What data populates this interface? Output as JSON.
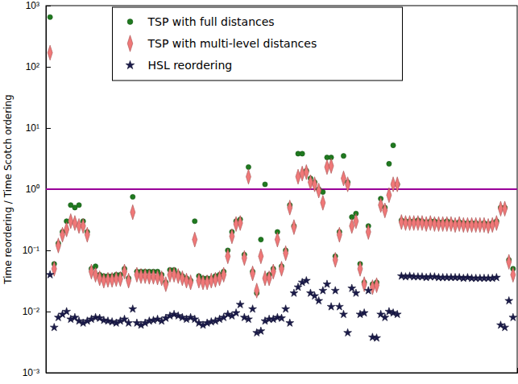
{
  "chart_data": {
    "type": "scatter",
    "y_label": "Time reordering / Time Scotch ordering",
    "log": "y",
    "legend": "upper center",
    "tick_labels": "y",
    "x": [
      1,
      2,
      3,
      4,
      5,
      6,
      7,
      8,
      9,
      10,
      11,
      12,
      13,
      14,
      15,
      16,
      17,
      18,
      19,
      20,
      21,
      22,
      23,
      24,
      25,
      26,
      27,
      28,
      29,
      30,
      31,
      32,
      33,
      34,
      35,
      36,
      37,
      38,
      39,
      40,
      41,
      42,
      43,
      44,
      45,
      46,
      47,
      48,
      49,
      50,
      51,
      52,
      53,
      54,
      55,
      56,
      57,
      58,
      59,
      60,
      61,
      62,
      63,
      64,
      65,
      66,
      67,
      68,
      69,
      70,
      71,
      72,
      73,
      74,
      75,
      76,
      77,
      78,
      79,
      80,
      81,
      82,
      83,
      84,
      85,
      86,
      87,
      88,
      89,
      90,
      91,
      92,
      93,
      94,
      95,
      96,
      97,
      98,
      99,
      100,
      101,
      102,
      103,
      104,
      105,
      106,
      107,
      108,
      109,
      110,
      111,
      112,
      113
    ],
    "xlim": [
      0,
      114
    ],
    "xticks": [],
    "ylim": [
      0.001,
      1000
    ],
    "yticks": [
      {
        "value": 0.001,
        "label": "10⁻³"
      },
      {
        "value": 0.01,
        "label": "10⁻²"
      },
      {
        "value": 0.1,
        "label": "10⁻¹"
      },
      {
        "value": 1,
        "label": "10⁰"
      },
      {
        "value": 10,
        "label": "10¹"
      },
      {
        "value": 100,
        "label": "10²"
      },
      {
        "value": 1000,
        "label": "10³"
      }
    ],
    "hline": {
      "value": 1,
      "color": "#990099"
    },
    "series": [
      {
        "name": "TSP with full distances",
        "color": "#1f7a1f",
        "marker": "circle",
        "values": [
          650,
          0.06,
          0.13,
          0.2,
          0.3,
          0.55,
          0.5,
          0.55,
          0.3,
          0.2,
          0.05,
          0.055,
          0.04,
          0.038,
          0.038,
          0.038,
          0.04,
          0.04,
          0.05,
          0.035,
          0.75,
          0.045,
          0.045,
          0.045,
          0.045,
          0.045,
          0.045,
          0.04,
          0.03,
          0.048,
          0.048,
          0.042,
          0.038,
          0.035,
          0.032,
          0.3,
          0.038,
          0.035,
          0.035,
          0.035,
          0.038,
          0.04,
          0.045,
          0.1,
          0.2,
          0.3,
          0.32,
          0.085,
          2.3,
          0.045,
          0.02,
          0.15,
          1.2,
          0.04,
          0.05,
          0.2,
          0.055,
          0.1,
          0.55,
          0.25,
          3.8,
          3.8,
          2.0,
          1.5,
          1.3,
          1.0,
          0.9,
          3.3,
          3.3,
          0.08,
          0.2,
          3.5,
          1.3,
          0.35,
          0.4,
          0.06,
          0.03,
          0.25,
          0.028,
          0.03,
          0.7,
          0.5,
          2.6,
          5.2,
          1.2,
          0.31,
          0.3,
          0.3,
          0.3,
          0.31,
          0.3,
          0.29,
          0.3,
          0.3,
          0.29,
          0.29,
          0.3,
          0.29,
          0.28,
          0.29,
          0.28,
          0.28,
          0.28,
          0.28,
          0.27,
          0.28,
          0.27,
          0.28,
          0.3,
          0.5,
          0.5,
          0.07,
          0.05
        ]
      },
      {
        "name": "TSP with multi-level distances",
        "color": "#f07878",
        "marker": "diamond",
        "values": [
          170,
          0.05,
          0.12,
          0.18,
          0.22,
          0.3,
          0.28,
          0.25,
          0.25,
          0.18,
          0.045,
          0.04,
          0.035,
          0.032,
          0.033,
          0.033,
          0.034,
          0.034,
          0.045,
          0.032,
          0.42,
          0.04,
          0.038,
          0.038,
          0.037,
          0.037,
          0.036,
          0.035,
          0.028,
          0.04,
          0.04,
          0.038,
          0.035,
          0.032,
          0.03,
          0.15,
          0.032,
          0.03,
          0.03,
          0.032,
          0.033,
          0.035,
          0.04,
          0.08,
          0.17,
          0.27,
          0.28,
          0.075,
          1.6,
          0.042,
          0.022,
          0.08,
          0.035,
          0.035,
          0.045,
          0.15,
          0.05,
          0.09,
          0.5,
          0.24,
          1.6,
          1.8,
          1.9,
          1.3,
          1.2,
          0.95,
          0.6,
          2.3,
          2.4,
          0.07,
          0.18,
          1.5,
          1.2,
          0.25,
          0.3,
          0.05,
          0.028,
          0.2,
          0.025,
          0.027,
          0.55,
          0.45,
          0.8,
          1.2,
          1.2,
          0.29,
          0.28,
          0.28,
          0.28,
          0.28,
          0.28,
          0.27,
          0.28,
          0.27,
          0.27,
          0.27,
          0.27,
          0.27,
          0.26,
          0.27,
          0.26,
          0.26,
          0.26,
          0.26,
          0.26,
          0.26,
          0.25,
          0.26,
          0.28,
          0.48,
          0.48,
          0.065,
          0.04
        ]
      },
      {
        "name": "HSL reordering",
        "color": "#1a1a4a",
        "marker": "star",
        "values": [
          0.04,
          0.0055,
          0.008,
          0.009,
          0.01,
          0.0075,
          0.008,
          0.007,
          0.0065,
          0.007,
          0.0075,
          0.008,
          0.0078,
          0.0072,
          0.007,
          0.0068,
          0.0065,
          0.007,
          0.0075,
          0.0065,
          0.011,
          0.0065,
          0.006,
          0.0065,
          0.007,
          0.0072,
          0.0075,
          0.007,
          0.0078,
          0.0085,
          0.009,
          0.0085,
          0.008,
          0.0075,
          0.008,
          0.0075,
          0.0065,
          0.006,
          0.0065,
          0.0068,
          0.007,
          0.0075,
          0.008,
          0.009,
          0.0085,
          0.0095,
          0.013,
          0.008,
          0.0075,
          0.011,
          0.0045,
          0.0048,
          0.007,
          0.0075,
          0.0075,
          0.008,
          0.0078,
          0.011,
          0.0065,
          0.02,
          0.025,
          0.03,
          0.032,
          0.02,
          0.018,
          0.015,
          0.022,
          0.028,
          0.012,
          0.022,
          0.012,
          0.009,
          0.0045,
          0.024,
          0.02,
          0.009,
          0.0095,
          0.022,
          0.0038,
          0.0037,
          0.009,
          0.008,
          0.01,
          0.0095,
          0.009,
          0.038,
          0.037,
          0.038,
          0.037,
          0.037,
          0.037,
          0.036,
          0.037,
          0.037,
          0.036,
          0.036,
          0.036,
          0.036,
          0.036,
          0.036,
          0.035,
          0.036,
          0.035,
          0.035,
          0.035,
          0.035,
          0.035,
          0.035,
          0.036,
          0.006,
          0.0055,
          0.015,
          0.008
        ]
      }
    ]
  }
}
